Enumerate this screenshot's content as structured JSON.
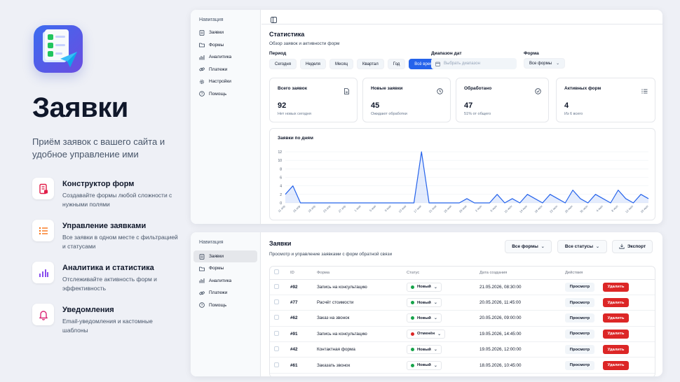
{
  "promo": {
    "title": "Заявки",
    "subtitle": "Приём заявок с вашего сайта и удобное управление ими",
    "features": [
      {
        "title": "Конструктор форм",
        "desc": "Создавайте формы любой сложности с нужными полями",
        "icon": "form-doc-icon",
        "color": "#e11d48"
      },
      {
        "title": "Управление заявками",
        "desc": "Все заявки в одном месте с фильтрацией и статусами",
        "icon": "list-icon",
        "color": "#f97316"
      },
      {
        "title": "Аналитика и статистика",
        "desc": "Отслеживайте активность форм и эффективность",
        "icon": "bar-chart-icon",
        "color": "#7c3aed"
      },
      {
        "title": "Уведомления",
        "desc": "Email-уведомления и кастомные шаблоны",
        "icon": "bell-icon",
        "color": "#db2777"
      }
    ]
  },
  "nav": {
    "heading": "Навигация",
    "items": [
      {
        "label": "Заявки",
        "icon": "document-icon"
      },
      {
        "label": "Формы",
        "icon": "folder-icon"
      },
      {
        "label": "Аналитика",
        "icon": "chart-icon"
      },
      {
        "label": "Платежи",
        "icon": "link-icon"
      },
      {
        "label": "Настройки",
        "icon": "gear-icon"
      },
      {
        "label": "Помощь",
        "icon": "help-icon"
      }
    ]
  },
  "stats": {
    "title": "Статистика",
    "subtitle": "Обзор заявок и активности форм",
    "period_label": "Период",
    "periods": [
      "Сегодня",
      "Неделя",
      "Месяц",
      "Квартал",
      "Год",
      "Всё время"
    ],
    "active_period": "Всё время",
    "range_label": "Диапазон дат",
    "range_placeholder": "Выбрать диапазон",
    "form_label": "Форма",
    "form_value": "Все формы",
    "cards": [
      {
        "title": "Всего заявок",
        "value": "92",
        "note": "Нет новых сегодня",
        "icon": "document-icon"
      },
      {
        "title": "Новые заявки",
        "value": "45",
        "note": "Ожидают обработки",
        "icon": "clock-icon"
      },
      {
        "title": "Обработано",
        "value": "47",
        "note": "51% от общего",
        "icon": "check-circle-icon"
      },
      {
        "title": "Активных форм",
        "value": "4",
        "note": "Из 6 всего",
        "icon": "list-check-icon"
      }
    ]
  },
  "chart_data": {
    "type": "area",
    "title": "Заявки по дням",
    "xlabel": "",
    "ylabel": "",
    "ylim": [
      0,
      12
    ],
    "yticks": [
      0,
      2,
      4,
      6,
      8,
      10,
      12
    ],
    "color": "#2563eb",
    "x": [
      "11 апр",
      "13 апр",
      "15 апр",
      "17 апр",
      "19 апр",
      "21 апр",
      "23 апр",
      "25 апр",
      "27 апр",
      "29 апр",
      "1 мая",
      "3 мая",
      "5 мая",
      "7 мая",
      "9 мая",
      "11 мая",
      "13 мая",
      "15 мая",
      "17 мая",
      "19 мая",
      "21 мая",
      "23 мая",
      "25 мая",
      "27 мая",
      "29 мая",
      "31 мая",
      "2 июн",
      "4 июн",
      "6 июн",
      "8 июн",
      "10 июн",
      "12 июн",
      "14 июн",
      "16 июн",
      "18 июн",
      "20 июн",
      "22 июн",
      "24 июн",
      "26 июн",
      "28 июн",
      "30 июн",
      "2 июл",
      "4 июл",
      "6 июл",
      "8 июл",
      "10 июл",
      "12 июл",
      "14 июл",
      "16 июл"
    ],
    "values": [
      2,
      4,
      0,
      0,
      0,
      0,
      0,
      0,
      0,
      0,
      0,
      0,
      0,
      0,
      0,
      0,
      0,
      0,
      12,
      0,
      0,
      0,
      0,
      0,
      1,
      0,
      0,
      0,
      2,
      0,
      1,
      0,
      2,
      1,
      0,
      2,
      1,
      0,
      3,
      1,
      0,
      2,
      1,
      0,
      3,
      1,
      0,
      2,
      1
    ],
    "xlabels": [
      "11 апр",
      "15 апр",
      "19 апр",
      "23 апр",
      "27 апр",
      "1 мая",
      "5 мая",
      "9 мая",
      "13 мая",
      "17 мая",
      "21 мая",
      "25 мая",
      "29 мая",
      "2 июн",
      "6 июн",
      "10 июн",
      "14 июн",
      "18 июн",
      "22 июн",
      "26 июн",
      "30 июн",
      "4 июл",
      "8 июл",
      "12 июл",
      "16 июл"
    ]
  },
  "requests": {
    "title": "Заявки",
    "subtitle": "Просмотр и управление заявками с форм обратной связи",
    "filter_forms": "Все формы",
    "filter_status": "Все статусы",
    "export_label": "Экспорт",
    "columns": [
      "ID",
      "Форма",
      "Статус",
      "Дата создания",
      "Действия"
    ],
    "view_label": "Просмотр",
    "delete_label": "Удалить",
    "rows": [
      {
        "id": "#92",
        "form": "Запись на консультацию",
        "status": "Новый",
        "status_color": "#16a34a",
        "date": "21.05.2026, 08:30:00"
      },
      {
        "id": "#77",
        "form": "Расчёт стоимости",
        "status": "Новый",
        "status_color": "#16a34a",
        "date": "20.05.2026, 11:45:00"
      },
      {
        "id": "#62",
        "form": "Заказ на звонок",
        "status": "Новый",
        "status_color": "#16a34a",
        "date": "20.05.2026, 09:00:00"
      },
      {
        "id": "#91",
        "form": "Запись на консультацию",
        "status": "Отменён",
        "status_color": "#dc2626",
        "date": "19.05.2026, 14:45:00"
      },
      {
        "id": "#42",
        "form": "Контактная форма",
        "status": "Новый",
        "status_color": "#16a34a",
        "date": "19.05.2026, 12:00:00"
      },
      {
        "id": "#61",
        "form": "Заказать звонок",
        "status": "Новый",
        "status_color": "#16a34a",
        "date": "18.05.2026, 10:45:00"
      }
    ]
  }
}
